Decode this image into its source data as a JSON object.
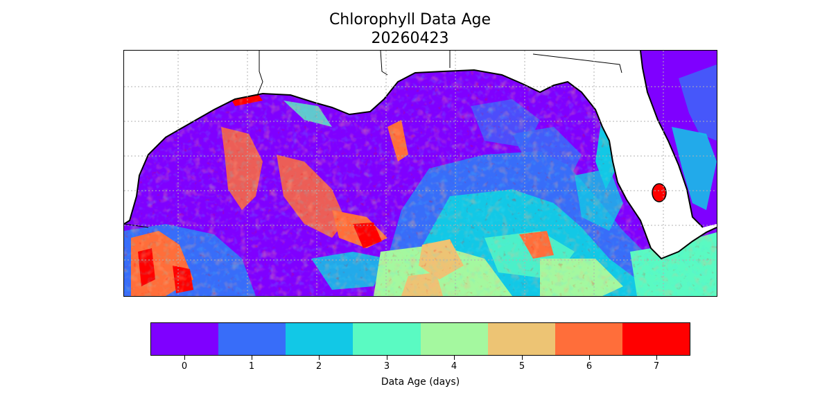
{
  "title": "Chlorophyll Data Age",
  "date": "20260423",
  "colorbar": {
    "label": "Data Age (days)",
    "ticks": [
      "0",
      "1",
      "2",
      "3",
      "4",
      "5",
      "6",
      "7"
    ],
    "colors": [
      "#7f00ff",
      "#386df9",
      "#12c8e6",
      "#5afac2",
      "#a4f89f",
      "#edc474",
      "#ff6e3a",
      "#ff0000"
    ]
  },
  "map": {
    "region": "Gulf of Mexico",
    "land_color": "#ffffff",
    "coastline_color": "#000000",
    "gridlines": true,
    "gridline_style": "dotted"
  }
}
